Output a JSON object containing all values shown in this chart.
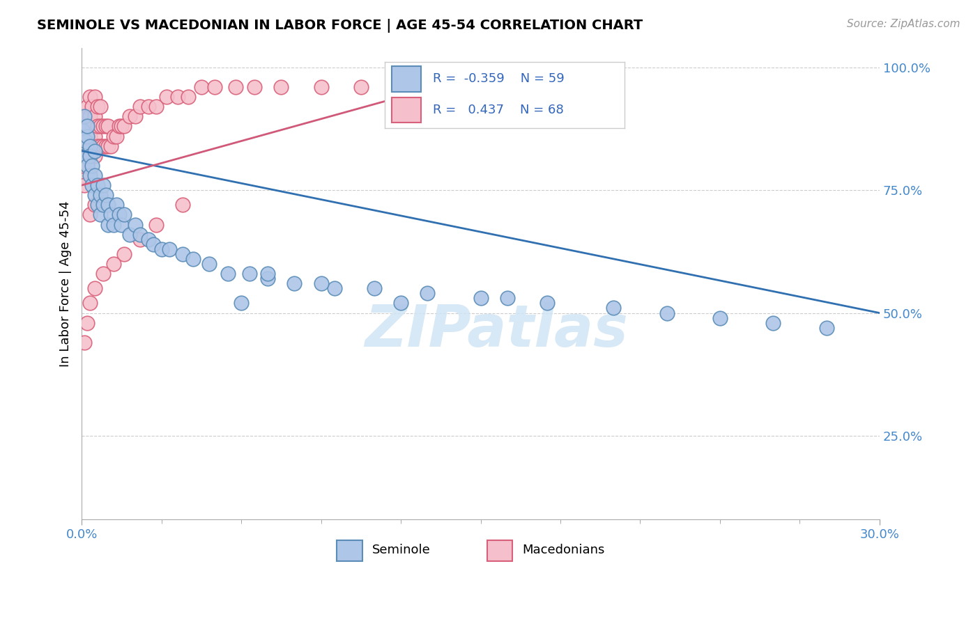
{
  "title": "SEMINOLE VS MACEDONIAN IN LABOR FORCE | AGE 45-54 CORRELATION CHART",
  "source_text": "Source: ZipAtlas.com",
  "ylabel": "In Labor Force | Age 45-54",
  "x_min": 0.0,
  "x_max": 0.3,
  "y_min": 0.08,
  "y_max": 1.04,
  "y_tick_values": [
    0.25,
    0.5,
    0.75,
    1.0
  ],
  "seminole_color": "#aec6e8",
  "seminole_edge_color": "#5b8db8",
  "macedonian_color": "#f5c0cc",
  "macedonian_edge_color": "#d9607a",
  "trend_seminole_color": "#3070b0",
  "trend_macedonian_color": "#d05878",
  "legend_R_seminole": "-0.359",
  "legend_N_seminole": "59",
  "legend_R_macedonian": "0.437",
  "legend_N_macedonian": "68",
  "watermark_color": "#d0e4f5",
  "background_color": "#ffffff",
  "grid_color": "#cccccc",
  "seminole_x": [
    0.0005,
    0.001,
    0.001,
    0.0015,
    0.002,
    0.002,
    0.002,
    0.003,
    0.003,
    0.003,
    0.004,
    0.004,
    0.005,
    0.005,
    0.005,
    0.006,
    0.006,
    0.007,
    0.007,
    0.008,
    0.008,
    0.009,
    0.01,
    0.01,
    0.011,
    0.012,
    0.013,
    0.014,
    0.015,
    0.016,
    0.018,
    0.02,
    0.022,
    0.025,
    0.027,
    0.03,
    0.033,
    0.038,
    0.042,
    0.048,
    0.055,
    0.063,
    0.07,
    0.08,
    0.095,
    0.11,
    0.13,
    0.15,
    0.175,
    0.2,
    0.22,
    0.24,
    0.26,
    0.28,
    0.12,
    0.16,
    0.09,
    0.07,
    0.06
  ],
  "seminole_y": [
    0.87,
    0.82,
    0.9,
    0.85,
    0.8,
    0.86,
    0.88,
    0.78,
    0.84,
    0.82,
    0.76,
    0.8,
    0.74,
    0.78,
    0.83,
    0.72,
    0.76,
    0.74,
    0.7,
    0.72,
    0.76,
    0.74,
    0.68,
    0.72,
    0.7,
    0.68,
    0.72,
    0.7,
    0.68,
    0.7,
    0.66,
    0.68,
    0.66,
    0.65,
    0.64,
    0.63,
    0.63,
    0.62,
    0.61,
    0.6,
    0.58,
    0.58,
    0.57,
    0.56,
    0.55,
    0.55,
    0.54,
    0.53,
    0.52,
    0.51,
    0.5,
    0.49,
    0.48,
    0.47,
    0.52,
    0.53,
    0.56,
    0.58,
    0.52
  ],
  "macedonian_x": [
    0.0003,
    0.0005,
    0.001,
    0.001,
    0.001,
    0.0015,
    0.002,
    0.002,
    0.002,
    0.002,
    0.003,
    0.003,
    0.003,
    0.003,
    0.004,
    0.004,
    0.004,
    0.005,
    0.005,
    0.005,
    0.005,
    0.006,
    0.006,
    0.006,
    0.007,
    0.007,
    0.007,
    0.008,
    0.008,
    0.009,
    0.009,
    0.01,
    0.01,
    0.011,
    0.012,
    0.013,
    0.014,
    0.015,
    0.016,
    0.018,
    0.02,
    0.022,
    0.025,
    0.028,
    0.032,
    0.036,
    0.04,
    0.045,
    0.05,
    0.058,
    0.065,
    0.075,
    0.09,
    0.105,
    0.12,
    0.14,
    0.038,
    0.028,
    0.022,
    0.016,
    0.012,
    0.008,
    0.005,
    0.003,
    0.002,
    0.001,
    0.003,
    0.005
  ],
  "macedonian_y": [
    0.78,
    0.8,
    0.76,
    0.82,
    0.88,
    0.84,
    0.8,
    0.85,
    0.9,
    0.92,
    0.82,
    0.86,
    0.9,
    0.94,
    0.84,
    0.88,
    0.92,
    0.82,
    0.86,
    0.9,
    0.94,
    0.84,
    0.88,
    0.92,
    0.84,
    0.88,
    0.92,
    0.84,
    0.88,
    0.84,
    0.88,
    0.84,
    0.88,
    0.84,
    0.86,
    0.86,
    0.88,
    0.88,
    0.88,
    0.9,
    0.9,
    0.92,
    0.92,
    0.92,
    0.94,
    0.94,
    0.94,
    0.96,
    0.96,
    0.96,
    0.96,
    0.96,
    0.96,
    0.96,
    0.96,
    0.96,
    0.72,
    0.68,
    0.65,
    0.62,
    0.6,
    0.58,
    0.55,
    0.52,
    0.48,
    0.44,
    0.7,
    0.72
  ],
  "trend_sem_x0": 0.0,
  "trend_sem_y0": 0.83,
  "trend_sem_x1": 0.3,
  "trend_sem_y1": 0.5,
  "trend_mac_x0": 0.0,
  "trend_mac_y0": 0.76,
  "trend_mac_x1": 0.14,
  "trend_mac_y1": 0.97
}
